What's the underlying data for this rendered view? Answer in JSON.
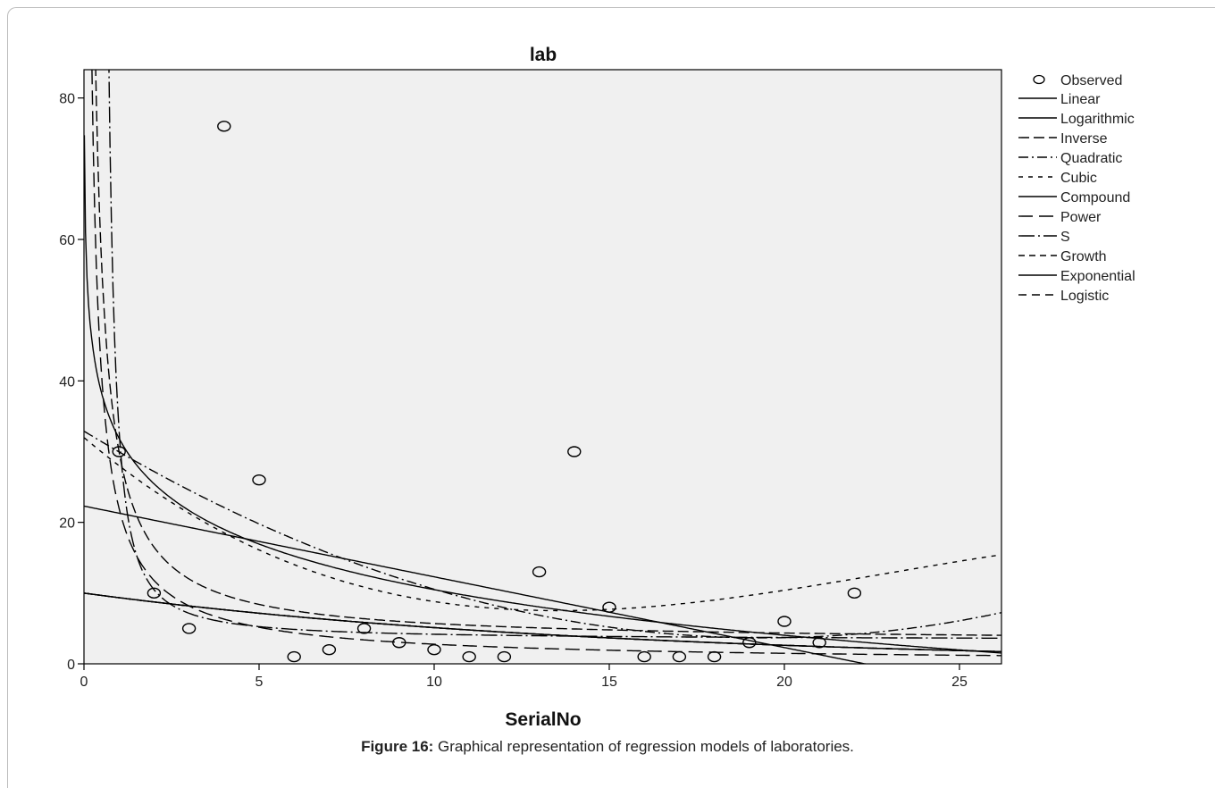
{
  "chart_data": {
    "type": "scatter",
    "title": "lab",
    "xlabel": "SerialNo",
    "ylabel": "",
    "xlim": [
      0,
      26.2
    ],
    "ylim": [
      0,
      84
    ],
    "xticks": [
      0,
      5,
      10,
      15,
      20,
      25
    ],
    "yticks": [
      0,
      20,
      40,
      60,
      80
    ],
    "grid": false,
    "legend_position": "right",
    "observed": {
      "name": "Observed",
      "x": [
        1,
        2,
        3,
        4,
        5,
        6,
        7,
        8,
        9,
        10,
        11,
        12,
        13,
        14,
        15,
        16,
        17,
        18,
        19,
        20,
        21,
        22
      ],
      "y": [
        30,
        10,
        5,
        76,
        26,
        1,
        2,
        5,
        3,
        2,
        1,
        1,
        13,
        30,
        8,
        1,
        1,
        1,
        3,
        6,
        3,
        10
      ]
    },
    "series": [
      {
        "name": "Linear",
        "dash": "",
        "curve": "22.3 - 1.0*x"
      },
      {
        "name": "Logarithmic",
        "dash": "",
        "curve": "31.9 - 9.3*ln(x)"
      },
      {
        "name": "Inverse",
        "dash": "12 5",
        "curve": "3.0 + 27.0/x"
      },
      {
        "name": "Quadratic",
        "dash": "11 4 2 4",
        "curve": "32.9 - 3.01*x + 0.0775*x^2"
      },
      {
        "name": "Cubic",
        "dash": "5 6",
        "curve": "32 - 4.2*x + 0.22*x^2 - 0.0032*x^3"
      },
      {
        "name": "Compound",
        "dash": "",
        "curve": "10.0*exp(-0.067*x)"
      },
      {
        "name": "Power",
        "dash": "16 7",
        "curve": "22*x^-0.9"
      },
      {
        "name": "S",
        "dash": "18 4 2 4",
        "curve": "exp(1.2 + 2.3/x)"
      },
      {
        "name": "Growth",
        "dash": "7 5",
        "curve": "10.0*exp(-0.067*x)"
      },
      {
        "name": "Exponential",
        "dash": "",
        "curve": "10.0*exp(-0.067*x)"
      },
      {
        "name": "Logistic",
        "dash": "9 6",
        "curve": "10.0*exp(-0.067*x)"
      }
    ]
  },
  "caption": {
    "label": "Figure 16:",
    "text": " Graphical representation of regression models of laboratories."
  }
}
